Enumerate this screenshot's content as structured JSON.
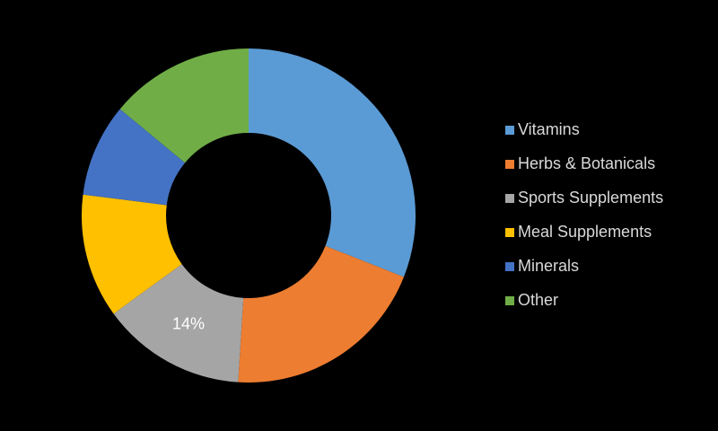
{
  "chart_data": {
    "type": "donut",
    "categories": [
      "Vitamins",
      "Herbs & Botanicals",
      "Sports Supplements",
      "Meal Supplements",
      "Minerals",
      "Other"
    ],
    "values": [
      31,
      20,
      14,
      12,
      9,
      14
    ],
    "value_labels": [
      null,
      null,
      "14%",
      null,
      null,
      null
    ],
    "colors": [
      "#5b9bd5",
      "#ed7d31",
      "#a5a5a5",
      "#ffc000",
      "#4472c4",
      "#70ad47"
    ],
    "legend": "right"
  }
}
